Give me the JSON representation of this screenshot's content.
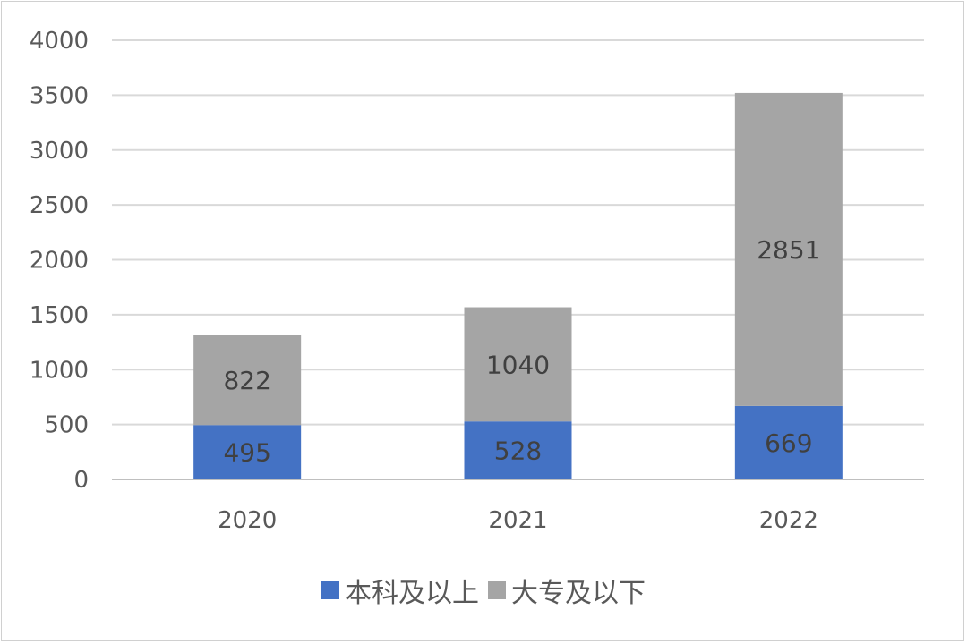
{
  "chart_data": {
    "type": "bar",
    "stacked": true,
    "categories": [
      "2020",
      "2021",
      "2022"
    ],
    "series": [
      {
        "name": "本科及以上",
        "values": [
          495,
          528,
          669
        ],
        "color": "#4472C4"
      },
      {
        "name": "大专及以下",
        "values": [
          822,
          1040,
          2851
        ],
        "color": "#A5A5A5"
      }
    ],
    "ylim": [
      0,
      4000
    ],
    "yticks": [
      "0",
      "500",
      "1000",
      "1500",
      "2000",
      "2500",
      "3000",
      "3500",
      "4000"
    ],
    "grid": true,
    "legend_position": "bottom"
  }
}
